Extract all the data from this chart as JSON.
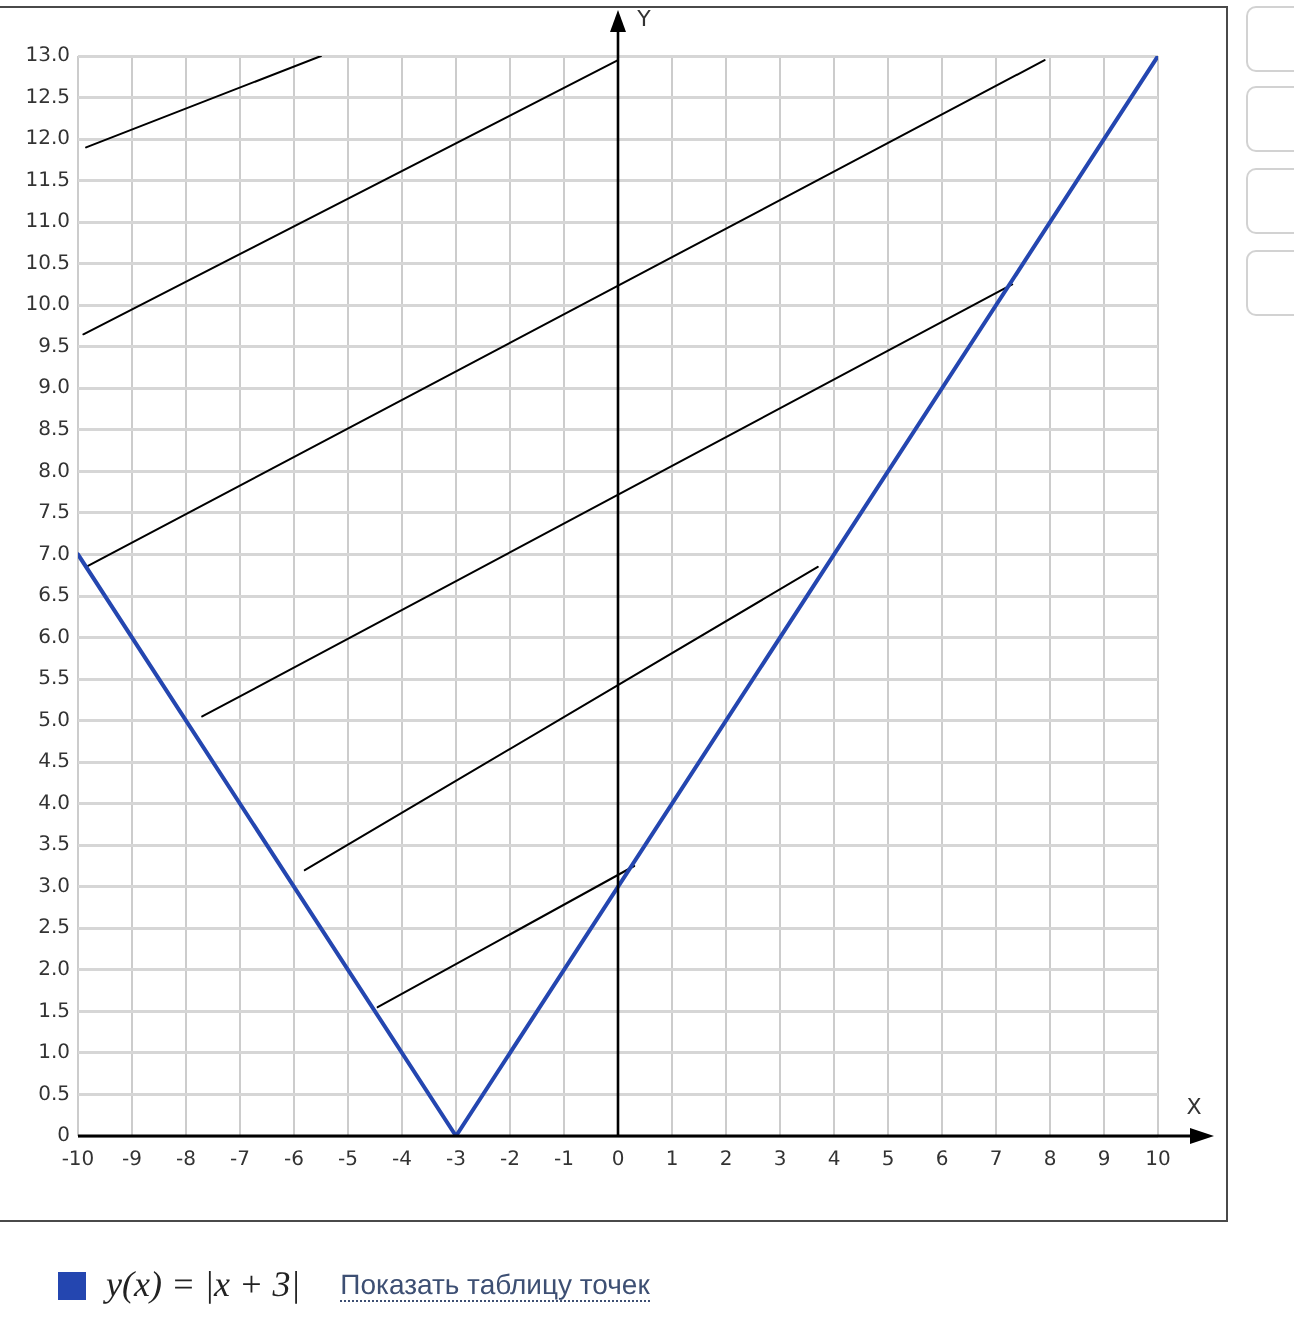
{
  "chart_data": {
    "type": "line",
    "xlabel": "X",
    "ylabel": "Y",
    "annotations": [
      "Показать таблицу точек"
    ],
    "xlim": [
      -10,
      10
    ],
    "xticks": [
      -10,
      -9,
      -8,
      -7,
      -6,
      -5,
      -4,
      -3,
      -2,
      -1,
      0,
      1,
      2,
      3,
      4,
      5,
      6,
      7,
      8,
      9,
      10
    ],
    "ylim": [
      0,
      13
    ],
    "yticks": [
      0,
      0.5,
      {
        "value": 1,
        "label": "1.0"
      },
      1.5,
      {
        "value": 2,
        "label": "2.0"
      },
      2.5,
      {
        "value": 3,
        "label": "3.0"
      },
      3.5,
      {
        "value": 4,
        "label": "4.0"
      },
      4.5,
      {
        "value": 5,
        "label": "5.0"
      },
      5.5,
      {
        "value": 6,
        "label": "6.0"
      },
      6.5,
      {
        "value": 7,
        "label": "7.0"
      },
      7.5,
      {
        "value": 8,
        "label": "8.0"
      },
      8.5,
      {
        "value": 9,
        "label": "9.0"
      },
      9.5,
      {
        "value": 10,
        "label": "10.0"
      },
      10.5,
      {
        "value": 11,
        "label": "11.0"
      },
      11.5,
      {
        "value": 12,
        "label": "12.0"
      },
      12.5,
      {
        "value": 13,
        "label": "13.0"
      }
    ],
    "grid": true,
    "legend": "bottom",
    "marker": "none",
    "series": [
      {
        "name": "y(x) = |x + 3|",
        "color": "#2446b0",
        "x": [
          -10,
          -3,
          10
        ],
        "values": [
          7,
          0,
          13
        ]
      },
      {
        "color": "#000000",
        "x": [
          -9.85,
          -5.5
        ],
        "values": [
          11.9,
          13
        ]
      },
      {
        "color": "#000000",
        "x": [
          -9.9,
          0
        ],
        "values": [
          9.65,
          12.95
        ]
      },
      {
        "color": "#000000",
        "x": [
          -9.85,
          7.9
        ],
        "values": [
          6.85,
          12.95
        ]
      },
      {
        "color": "#000000",
        "x": [
          -7.7,
          7.3
        ],
        "values": [
          5.05,
          10.25
        ]
      },
      {
        "color": "#000000",
        "x": [
          -5.8,
          3.7
        ],
        "values": [
          3.2,
          6.85
        ]
      },
      {
        "color": "#000000",
        "x": [
          -4.45,
          0.3
        ],
        "values": [
          1.55,
          3.25
        ]
      }
    ]
  }
}
